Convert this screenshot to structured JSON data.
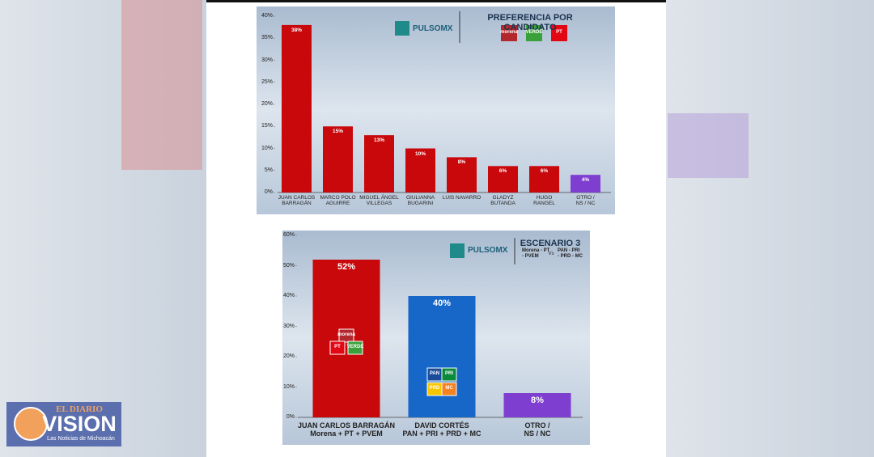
{
  "publisher": {
    "name_top": "EL DIARIO",
    "name": "VISION",
    "tagline": "Las Noticias de Michoacán"
  },
  "chart_data": [
    {
      "type": "bar",
      "brand": "PULSOMX",
      "title": "PREFERENCIA POR CANDIDATO",
      "parties": [
        "morena",
        "VERDE",
        "PT"
      ],
      "categories": [
        "JUAN CARLOS\nBARRAGÁN",
        "MARCO POLO\nAGUIRRE",
        "MIGUEL ÁNGEL\nVILLEGAS",
        "GIULIANNA\nBUGARINI",
        "LUIS NAVARRO",
        "GLADYZ\nBUTANDA",
        "HUGO\nRANGEL",
        "OTRO /\nNS / NC"
      ],
      "values": [
        38,
        15,
        13,
        10,
        8,
        6,
        6,
        4
      ],
      "value_labels": [
        "38%",
        "15%",
        "13%",
        "10%",
        "8%",
        "6%",
        "6%",
        "4%"
      ],
      "colors": [
        "#c9080c",
        "#c9080c",
        "#c9080c",
        "#c9080c",
        "#c9080c",
        "#c9080c",
        "#c9080c",
        "#7e3fd0"
      ],
      "ylim": [
        0,
        40
      ],
      "yticks": [
        {
          "value": 0,
          "label": "0%"
        },
        {
          "value": 5,
          "label": "5%"
        },
        {
          "value": 10,
          "label": "10%"
        },
        {
          "value": 15,
          "label": "15%"
        },
        {
          "value": 20,
          "label": "20%"
        },
        {
          "value": 25,
          "label": "25%"
        },
        {
          "value": 30,
          "label": "30%"
        },
        {
          "value": 35,
          "label": "35%"
        },
        {
          "value": 40,
          "label": "40%"
        }
      ]
    },
    {
      "type": "bar",
      "brand": "PULSOMX",
      "title": "ESCENARIO 3",
      "scenario_left": "Morena - PT\n- PVEM",
      "versus": "Vs",
      "scenario_right": "PAN - PRI\n- PRD - MC",
      "categories": [
        "JUAN CARLOS BARRAGÁN\nMorena + PT + PVEM",
        "DAVID CORTÉS\nPAN + PRI + PRD + MC",
        "OTRO /\nNS / NC"
      ],
      "candidate_logos": [
        [
          "morena",
          "PT",
          "VERDE"
        ],
        [
          "PAN",
          "PRI",
          "PRD",
          "MC"
        ],
        []
      ],
      "values": [
        52,
        40,
        8
      ],
      "value_labels": [
        "52%",
        "40%",
        "8%"
      ],
      "colors": [
        "#c9080c",
        "#1667c8",
        "#7e3fd0"
      ],
      "ylim": [
        0,
        60
      ],
      "yticks": [
        {
          "value": 0,
          "label": "0%"
        },
        {
          "value": 10,
          "label": "10%"
        },
        {
          "value": 20,
          "label": "20%"
        },
        {
          "value": 30,
          "label": "30%"
        },
        {
          "value": 40,
          "label": "40%"
        },
        {
          "value": 50,
          "label": "50%"
        },
        {
          "value": 60,
          "label": "60%"
        }
      ]
    }
  ]
}
